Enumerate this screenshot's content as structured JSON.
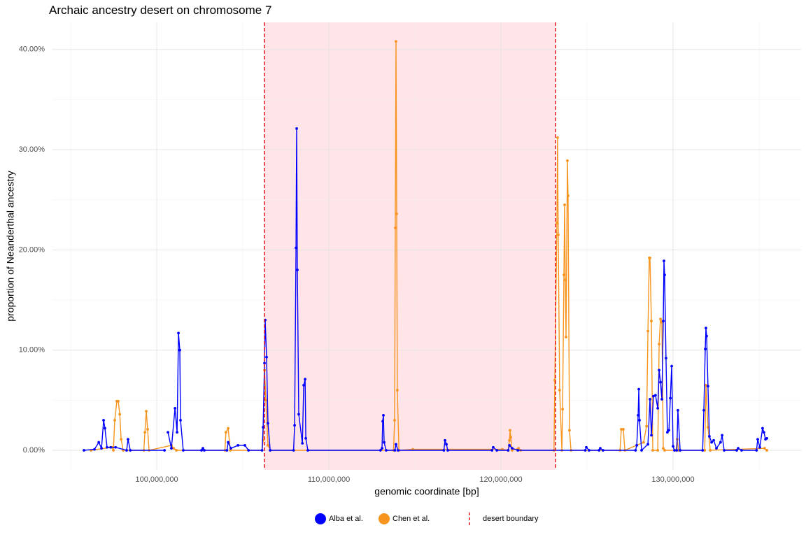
{
  "chart_data": {
    "type": "line",
    "title": "Archaic ancestry desert on chromosome 7",
    "x_label": "genomic coordinate [bp]",
    "y_label": "proportion of Neanderthal ancestry",
    "xlim": [
      93940000,
      137440000
    ],
    "ylim": [
      -1.95,
      42.7
    ],
    "xticks": [
      {
        "value": 100000000,
        "label": "100,000,000"
      },
      {
        "value": 110000000,
        "label": "110,000,000"
      },
      {
        "value": 120000000,
        "label": "120,000,000"
      },
      {
        "value": 130000000,
        "label": "130,000,000"
      }
    ],
    "yticks": [
      {
        "value": 0,
        "label": "0.00%"
      },
      {
        "value": 10,
        "label": "10.00%"
      },
      {
        "value": 20,
        "label": "20.00%"
      },
      {
        "value": 30,
        "label": "30.00%"
      },
      {
        "value": 40,
        "label": "40.00%"
      }
    ],
    "grid": true,
    "legend_position": "bottom",
    "desert": {
      "name": "desert boundary",
      "color": "#e8141e",
      "shade": "#ffe4e8",
      "boundaries": [
        106260000,
        123170000
      ]
    },
    "series": [
      {
        "name": "Chen et al.",
        "color": "#f7941d",
        "x": [
          96180000,
          97400000,
          97480000,
          97560000,
          97680000,
          97760000,
          97850000,
          97930000,
          98050000,
          99250000,
          99310000,
          99390000,
          99470000,
          99550000,
          100850000,
          100980000,
          101140000,
          103960000,
          104020000,
          104150000,
          104270000,
          106120000,
          106180000,
          106260000,
          106340000,
          106460000,
          106590000,
          113760000,
          113820000,
          113860000,
          113900000,
          113940000,
          113980000,
          114070000,
          114880000,
          120080000,
          120420000,
          120490000,
          120530000,
          120570000,
          120650000,
          121020000,
          121140000,
          123080000,
          123130000,
          123250000,
          123290000,
          123330000,
          123410000,
          123540000,
          123580000,
          123660000,
          123700000,
          123740000,
          123780000,
          123860000,
          123900000,
          123980000,
          124070000,
          126920000,
          126990000,
          127110000,
          127200000,
          128290000,
          128460000,
          128540000,
          128620000,
          128660000,
          128740000,
          128820000,
          129110000,
          129190000,
          129270000,
          129350000,
          129430000,
          129510000,
          130170000,
          130240000,
          130330000,
          131840000,
          131910000,
          132030000,
          132160000,
          135320000,
          135450000
        ],
        "values": [
          0,
          0.3,
          0,
          3.0,
          4.9,
          4.9,
          3.6,
          1.1,
          0,
          0,
          1.8,
          3.9,
          2.1,
          0,
          0.5,
          0.2,
          0,
          0,
          1.8,
          2.2,
          0,
          0,
          1.0,
          8.0,
          5.0,
          0.5,
          0,
          0,
          3.0,
          22.2,
          40.8,
          23.6,
          6.0,
          0,
          0.1,
          0.1,
          0,
          1.0,
          2.0,
          1.3,
          0,
          0.2,
          0,
          0,
          7.0,
          22.7,
          31.2,
          21.5,
          6.0,
          0,
          4.1,
          17.5,
          24.5,
          17.0,
          11.3,
          28.9,
          25.4,
          2.0,
          0,
          0,
          2.1,
          2.1,
          0,
          0.8,
          2.4,
          11.9,
          19.2,
          19.2,
          12.9,
          0,
          0,
          10.6,
          13.1,
          12.8,
          0.2,
          0,
          0,
          1.1,
          0,
          0,
          6.5,
          2.3,
          0,
          0.2,
          0
        ]
      },
      {
        "name": "Alba et al.",
        "color": "#0000ff",
        "x": [
          95770000,
          96380000,
          96630000,
          96790000,
          96910000,
          96990000,
          97110000,
          97320000,
          97600000,
          98250000,
          98330000,
          98460000,
          100450000,
          100550000,
          100650000,
          100850000,
          101060000,
          101180000,
          101260000,
          101340000,
          101380000,
          101540000,
          102600000,
          102680000,
          102760000,
          104080000,
          104150000,
          104310000,
          104720000,
          105120000,
          105330000,
          106120000,
          106180000,
          106260000,
          106300000,
          106380000,
          106460000,
          106590000,
          107950000,
          108010000,
          108090000,
          108130000,
          108170000,
          108250000,
          108460000,
          108540000,
          108620000,
          108660000,
          108780000,
          113000000,
          113090000,
          113130000,
          113170000,
          113210000,
          113330000,
          113840000,
          113900000,
          114020000,
          116680000,
          116750000,
          116830000,
          116910000,
          119480000,
          119550000,
          119760000,
          120420000,
          120490000,
          120650000,
          120980000,
          124900000,
          124960000,
          125120000,
          125700000,
          125770000,
          125930000,
          127820000,
          127890000,
          127970000,
          128010000,
          128050000,
          128170000,
          128540000,
          128660000,
          128740000,
          128860000,
          128980000,
          129110000,
          129190000,
          129270000,
          129350000,
          129430000,
          129470000,
          129510000,
          129590000,
          129670000,
          129760000,
          129840000,
          129920000,
          130000000,
          130080000,
          130220000,
          130280000,
          130410000,
          131720000,
          131790000,
          131870000,
          131910000,
          131950000,
          132030000,
          132110000,
          132240000,
          132360000,
          132520000,
          132760000,
          132850000,
          132970000,
          133700000,
          133780000,
          133980000,
          134850000,
          134920000,
          135040000,
          135200000,
          135280000,
          135370000,
          135450000
        ],
        "values": [
          0,
          0.1,
          0.8,
          0.2,
          3.0,
          2.2,
          0.3,
          0.3,
          0.3,
          0,
          1.1,
          0,
          0,
          null,
          1.8,
          0.2,
          4.2,
          1.8,
          11.7,
          10.0,
          3.0,
          0,
          0,
          0.2,
          0,
          0,
          0.8,
          0.2,
          0.5,
          0.5,
          0,
          0,
          2.3,
          8.7,
          13.0,
          9.3,
          2.7,
          0,
          0,
          2.5,
          20.2,
          32.1,
          18.0,
          3.6,
          0.7,
          6.5,
          7.1,
          1.2,
          0,
          0,
          0.2,
          2.9,
          3.5,
          0.8,
          0,
          0,
          0.6,
          0,
          0,
          1.0,
          0.6,
          0,
          0,
          0.3,
          0,
          0,
          0.5,
          0.2,
          0,
          0,
          0.3,
          0,
          0,
          0.2,
          0,
          0,
          0.5,
          3.5,
          6.1,
          3.0,
          0,
          0.6,
          5.1,
          1.5,
          5.4,
          5.5,
          4.2,
          8.0,
          6.8,
          5.1,
          12.9,
          18.9,
          17.5,
          9.2,
          1.8,
          2.0,
          5.2,
          8.4,
          0.4,
          0,
          0,
          4.0,
          0,
          0,
          4.0,
          10.1,
          12.2,
          11.4,
          6.4,
          1.4,
          0.8,
          1.0,
          0.2,
          0.8,
          1.5,
          0,
          0,
          0.2,
          0,
          0,
          1.1,
          0.3,
          2.2,
          1.8,
          1.1,
          1.2
        ]
      }
    ]
  }
}
